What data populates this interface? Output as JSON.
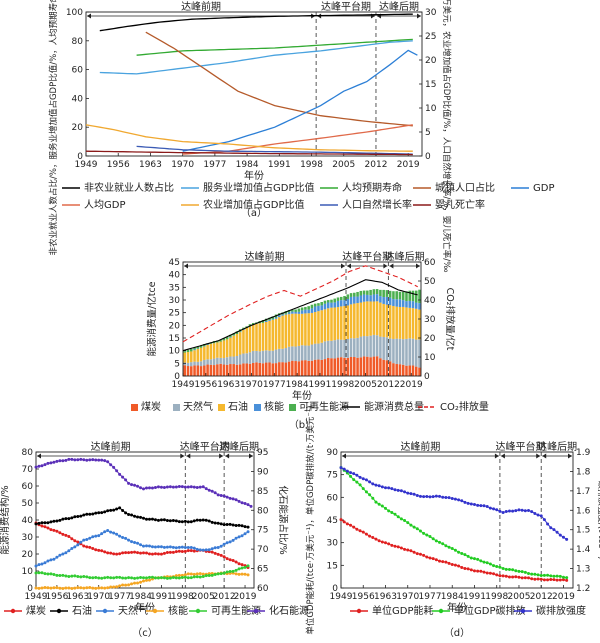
{
  "chart_data": [
    {
      "type": "line",
      "panel_label": "（a）",
      "xlabel": "年份",
      "ylabel_left": "非农业就业人数占比/%，服务业增加值占GDP比值/%，人均预期寿命/岁，城镇人口占比/%",
      "ylabel_right": "GDP/万亿美元，人均GDP/万美元，农业增加值占GDP比值/%，人口自然增长率/%，婴儿死亡率/‰",
      "xlim": [
        1949,
        2022
      ],
      "ylim_left": [
        0,
        100
      ],
      "ylim_right": [
        0,
        30
      ],
      "x_ticks": [
        "1949",
        "1956",
        "1963",
        "1970",
        "1977",
        "1984",
        "1991",
        "1998",
        "2005",
        "2012",
        "2019"
      ],
      "y_ticks_left": [
        "0",
        "20",
        "40",
        "60",
        "80",
        "100"
      ],
      "y_ticks_right": [
        "0",
        "5",
        "10",
        "15",
        "20",
        "25",
        "30"
      ],
      "periods": [
        {
          "label": "达峰前期",
          "from": 1949,
          "to": 1999
        },
        {
          "label": "达峰平台期",
          "from": 1999,
          "to": 2012
        },
        {
          "label": "达峰后期",
          "from": 2012,
          "to": 2022
        }
      ],
      "period_dividers": [
        1999,
        2012
      ],
      "series": [
        {
          "name": "非农业就业人数占比",
          "axis": "left",
          "color": "#000000",
          "x": [
            1952,
            1958,
            1965,
            1972,
            1980,
            1990,
            2000,
            2010,
            2020
          ],
          "y": [
            87,
            90,
            93,
            95,
            96,
            97,
            97.5,
            98,
            98.5
          ]
        },
        {
          "name": "服务业增加值占GDP比值",
          "axis": "left",
          "color": "#4aa3df",
          "x": [
            1952,
            1960,
            1970,
            1980,
            1990,
            2000,
            2010,
            2015,
            2020
          ],
          "y": [
            58,
            57,
            61,
            65,
            70,
            73,
            77,
            79,
            80
          ]
        },
        {
          "name": "人均预期寿命",
          "axis": "left",
          "color": "#33aa33",
          "x": [
            1960,
            1970,
            1980,
            1990,
            2000,
            2010,
            2020
          ],
          "y": [
            70,
            73,
            74,
            75,
            77,
            79,
            81
          ]
        },
        {
          "name": "城镇人口占比",
          "axis": "left",
          "color": "#b55a2a",
          "x": [
            1962,
            1968,
            1975,
            1982,
            1990,
            2000,
            2010,
            2020
          ],
          "y": [
            86,
            75,
            60,
            45,
            35,
            28,
            24,
            21
          ]
        },
        {
          "name": "GDP",
          "axis": "right",
          "color": "#2c7fd6",
          "x": [
            1970,
            1980,
            1990,
            2000,
            2005,
            2010,
            2015,
            2019,
            2021
          ],
          "y": [
            1.0,
            3.0,
            6.0,
            10.5,
            13.5,
            15.5,
            19,
            22,
            21
          ]
        },
        {
          "name": "人均GDP",
          "axis": "right",
          "color": "#e06a4a",
          "x": [
            1970,
            1980,
            1990,
            2000,
            2010,
            2020
          ],
          "y": [
            0.4,
            1.0,
            2.5,
            3.7,
            5.0,
            6.5
          ]
        },
        {
          "name": "农业增加值占GDP比值",
          "axis": "right",
          "color": "#f0a830",
          "x": [
            1949,
            1955,
            1962,
            1970,
            1980,
            1990,
            2000,
            2010,
            2020
          ],
          "y": [
            6.5,
            5.5,
            4.0,
            3.0,
            2.5,
            1.7,
            1.3,
            1.1,
            1.0
          ]
        },
        {
          "name": "人口自然增长率",
          "axis": "right",
          "color": "#3b5bb5",
          "x": [
            1960,
            1970,
            1980,
            1990,
            2000,
            2010,
            2020
          ],
          "y": [
            2.0,
            1.3,
            1.0,
            0.9,
            0.8,
            0.6,
            0.4
          ]
        },
        {
          "name": "婴儿死亡率",
          "axis": "right",
          "color": "#8b1a1a",
          "x": [
            1949,
            1970,
            1990,
            2020
          ],
          "y": [
            1.0,
            0.7,
            0.5,
            0.3
          ]
        }
      ]
    },
    {
      "type": "bar",
      "panel_label": "（b）",
      "xlabel": "年份",
      "ylabel_left": "能源消费量/亿tce",
      "ylabel_right": "CO₂排放量/亿t",
      "xlim": [
        1949,
        2022
      ],
      "ylim_left": [
        0,
        45
      ],
      "ylim_right": [
        0,
        60
      ],
      "x_ticks": [
        "1949",
        "1956",
        "1963",
        "1970",
        "1977",
        "1984",
        "1991",
        "1998",
        "2005",
        "2012",
        "2019"
      ],
      "y_ticks_left": [
        "0",
        "5",
        "10",
        "15",
        "20",
        "25",
        "30",
        "35",
        "40",
        "45"
      ],
      "y_ticks_right": [
        "0",
        "10",
        "20",
        "30",
        "40",
        "50",
        "60"
      ],
      "periods": [
        {
          "label": "达峰前期",
          "from": 1949,
          "to": 1999
        },
        {
          "label": "达峰平台期",
          "from": 1999,
          "to": 2012
        },
        {
          "label": "达峰后期",
          "from": 2012,
          "to": 2022
        }
      ],
      "period_dividers": [
        1999,
        2012
      ],
      "stack_series": [
        {
          "name": "煤炭",
          "color": "#f05a28",
          "x": [
            1949,
            1960,
            1970,
            1980,
            1990,
            2000,
            2008,
            2015,
            2021
          ],
          "y": [
            4.0,
            4.5,
            5.0,
            5.5,
            6.5,
            7.5,
            7.5,
            4.5,
            3.5
          ]
        },
        {
          "name": "天然气",
          "color": "#9cb0c0",
          "x": [
            1949,
            1960,
            1970,
            1980,
            1990,
            2000,
            2008,
            2015,
            2021
          ],
          "y": [
            1.3,
            2.5,
            4.5,
            5.5,
            6.5,
            7.5,
            8.5,
            10.0,
            11.0
          ]
        },
        {
          "name": "石油",
          "color": "#f5b82e",
          "x": [
            1949,
            1960,
            1970,
            1980,
            1990,
            2000,
            2008,
            2015,
            2021
          ],
          "y": [
            4.0,
            6.5,
            10.5,
            13.0,
            12.5,
            13.5,
            13.5,
            12.5,
            12.0
          ]
        },
        {
          "name": "核能",
          "color": "#4a90d9",
          "x": [
            1949,
            1960,
            1970,
            1980,
            1990,
            2000,
            2008,
            2015,
            2021
          ],
          "y": [
            0,
            0,
            0,
            0.5,
            2.0,
            2.6,
            2.8,
            2.8,
            2.7
          ]
        },
        {
          "name": "可再生能源",
          "color": "#4caf50",
          "x": [
            1949,
            1960,
            1970,
            1980,
            1990,
            2000,
            2008,
            2015,
            2021
          ],
          "y": [
            0.7,
            0.8,
            0.8,
            1.0,
            1.2,
            1.5,
            2.2,
            3.2,
            5.0
          ]
        }
      ],
      "series": [
        {
          "name": "能源消费总量",
          "axis": "left",
          "color": "#000000",
          "style": "solid",
          "x": [
            1949,
            1960,
            1970,
            1980,
            1990,
            2000,
            2005,
            2010,
            2015,
            2021
          ],
          "y": [
            10,
            14,
            20,
            25,
            30,
            35,
            38,
            37,
            34,
            32
          ]
        },
        {
          "name": "CO₂排放量",
          "axis": "right",
          "color": "#e02020",
          "style": "dashed",
          "x": [
            1949,
            1956,
            1963,
            1970,
            1975,
            1980,
            1985,
            1990,
            1995,
            2000,
            2005,
            2010,
            2015,
            2021
          ],
          "y": [
            18,
            25,
            32,
            38,
            42,
            45,
            42,
            46,
            50,
            55,
            58,
            55,
            52,
            47
          ]
        }
      ]
    },
    {
      "type": "line",
      "panel_label": "（c）",
      "xlabel": "年份",
      "ylabel_left": "能源消费结构/%",
      "ylabel_right": "化石能源占比/%",
      "xlim": [
        1949,
        2022
      ],
      "ylim_left": [
        0,
        80
      ],
      "ylim_right": [
        60,
        95
      ],
      "x_ticks": [
        "1949",
        "1956",
        "1963",
        "1970",
        "1977",
        "1984",
        "1991",
        "1998",
        "2005",
        "2012",
        "2019"
      ],
      "y_ticks_left": [
        "0",
        "10",
        "20",
        "30",
        "40",
        "50",
        "60",
        "70",
        "80"
      ],
      "y_ticks_right": [
        "60",
        "65",
        "70",
        "75",
        "80",
        "85",
        "90",
        "95"
      ],
      "periods": [
        {
          "label": "达峰前期",
          "from": 1949,
          "to": 1999
        },
        {
          "label": "达峰平台期",
          "from": 1999,
          "to": 2012
        },
        {
          "label": "达峰后期",
          "from": 2012,
          "to": 2022
        }
      ],
      "period_dividers": [
        1999,
        2012
      ],
      "series": [
        {
          "name": "煤炭",
          "axis": "left",
          "color": "#e02020",
          "x": [
            1949,
            1955,
            1960,
            1965,
            1970,
            1975,
            1980,
            1990,
            2000,
            2005,
            2010,
            2015,
            2020
          ],
          "y": [
            38,
            34,
            30,
            25,
            22,
            20,
            21,
            20,
            22,
            22,
            20,
            16,
            12
          ]
        },
        {
          "name": "石油",
          "axis": "left",
          "color": "#000000",
          "x": [
            1949,
            1955,
            1960,
            1965,
            1970,
            1977,
            1980,
            1985,
            1990,
            2000,
            2005,
            2010,
            2015,
            2020
          ],
          "y": [
            38,
            39,
            41,
            43,
            44,
            47,
            43,
            41,
            40,
            39,
            40,
            38,
            37,
            36
          ]
        },
        {
          "name": "天然气",
          "axis": "left",
          "color": "#3a7bd5",
          "x": [
            1949,
            1955,
            1960,
            1965,
            1970,
            1973,
            1980,
            1985,
            1990,
            2000,
            2005,
            2010,
            2015,
            2020
          ],
          "y": [
            13,
            17,
            22,
            28,
            31,
            34,
            28,
            25,
            24,
            24,
            22,
            24,
            28,
            33
          ]
        },
        {
          "name": "核能",
          "axis": "left",
          "color": "#f5a623",
          "x": [
            1949,
            1970,
            1975,
            1980,
            1990,
            2000,
            2008,
            2015,
            2020
          ],
          "y": [
            0,
            0,
            0.5,
            2,
            6,
            8,
            8.5,
            8.5,
            8
          ]
        },
        {
          "name": "可再生能源",
          "axis": "left",
          "color": "#33cc33",
          "x": [
            1949,
            1960,
            1970,
            1980,
            1990,
            2000,
            2010,
            2015,
            2020
          ],
          "y": [
            9,
            7,
            6,
            6,
            6,
            6,
            8,
            10,
            13
          ]
        },
        {
          "name": "化石能源",
          "axis": "right",
          "color": "#5a2fb8",
          "x": [
            1949,
            1955,
            1960,
            1970,
            1973,
            1980,
            1985,
            1990,
            2000,
            2005,
            2010,
            2015,
            2021
          ],
          "y": [
            91,
            92.5,
            93,
            93,
            92.5,
            87,
            85.5,
            86,
            86,
            86,
            84,
            83,
            81
          ]
        }
      ]
    },
    {
      "type": "line",
      "panel_label": "（d）",
      "xlabel": "年份",
      "ylabel_left": "单位GDP能耗/(tce·万美元⁻¹)，单位GDP碳排放/(t·万美元⁻¹)",
      "ylabel_right": "碳排放强度/(t·tce⁻¹)",
      "xlim": [
        1949,
        2022
      ],
      "ylim_left": [
        0,
        90
      ],
      "ylim_right": [
        1.2,
        1.9
      ],
      "x_ticks": [
        "1949",
        "1956",
        "1963",
        "1970",
        "1977",
        "1984",
        "1991",
        "1998",
        "2005",
        "2012",
        "2019"
      ],
      "y_ticks_left": [
        "0",
        "15",
        "30",
        "45",
        "60",
        "75",
        "90"
      ],
      "y_ticks_right": [
        "1.2",
        "1.3",
        "1.4",
        "1.5",
        "1.6",
        "1.7",
        "1.8",
        "1.9"
      ],
      "periods": [
        {
          "label": "达峰前期",
          "from": 1949,
          "to": 1999
        },
        {
          "label": "达峰平台期",
          "from": 1999,
          "to": 2012
        },
        {
          "label": "达峰后期",
          "from": 2012,
          "to": 2022
        }
      ],
      "period_dividers": [
        1999,
        2012
      ],
      "series": [
        {
          "name": "单位GDP能耗",
          "axis": "left",
          "color": "#e02020",
          "x": [
            1949,
            1955,
            1960,
            1970,
            1980,
            1990,
            2000,
            2010,
            2020
          ],
          "y": [
            45,
            38,
            32,
            25,
            18,
            12,
            8,
            6,
            5
          ]
        },
        {
          "name": "单位GDP碳排放",
          "axis": "left",
          "color": "#22cc22",
          "x": [
            1949,
            1955,
            1960,
            1965,
            1970,
            1980,
            1990,
            2000,
            2010,
            2020
          ],
          "y": [
            80,
            68,
            57,
            50,
            43,
            30,
            20,
            13,
            9,
            7
          ]
        },
        {
          "name": "碳排放强度",
          "axis": "right",
          "color": "#3333cc",
          "x": [
            1949,
            1955,
            1960,
            1965,
            1970,
            1975,
            1980,
            1985,
            1990,
            1995,
            2000,
            2005,
            2008,
            2012,
            2015,
            2020
          ],
          "y": [
            1.82,
            1.77,
            1.73,
            1.71,
            1.69,
            1.67,
            1.67,
            1.66,
            1.63,
            1.62,
            1.59,
            1.6,
            1.6,
            1.57,
            1.51,
            1.45
          ]
        }
      ]
    }
  ]
}
